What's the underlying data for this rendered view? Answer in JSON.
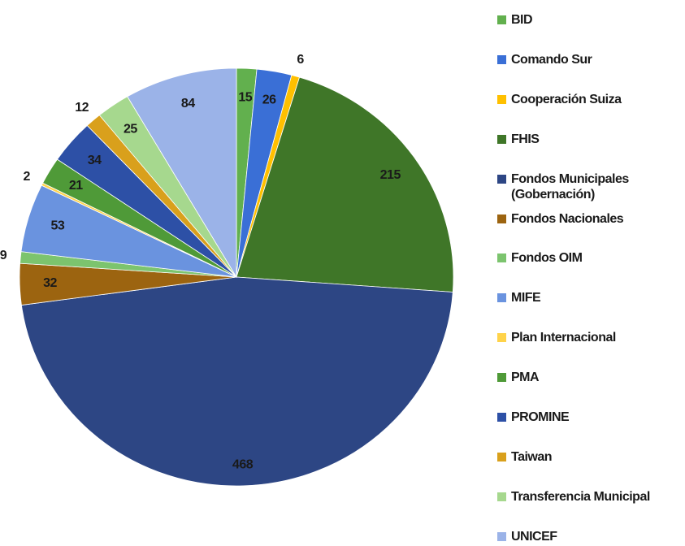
{
  "chart_data": {
    "type": "pie",
    "categories": [
      "BID",
      "Comando Sur",
      "Cooperación Suiza",
      "FHIS",
      "Fondos Municipales (Gobernación)",
      "Fondos Nacionales",
      "Fondos OIM",
      "MIFE",
      "Plan Internacional",
      "PMA",
      "PROMINE",
      "Taiwan",
      "Transferencia Municipal",
      "UNICEF"
    ],
    "values": [
      15,
      26,
      6,
      215,
      468,
      32,
      9,
      53,
      2,
      21,
      34,
      12,
      25,
      84
    ],
    "colors": [
      "#62b04e",
      "#3a6fd6",
      "#ffc000",
      "#3f7628",
      "#2d4684",
      "#9c6410",
      "#7cc46e",
      "#6a93df",
      "#ffd34a",
      "#4f9a38",
      "#2d50a6",
      "#d9a01c",
      "#a6d88e",
      "#9bb3e8"
    ],
    "legend": "right"
  }
}
